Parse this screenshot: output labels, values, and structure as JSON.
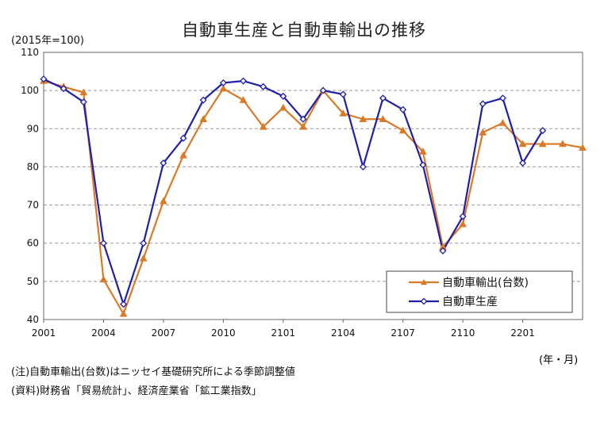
{
  "chart_data": {
    "type": "line",
    "title": "自動車生産と自動車輸出の推移",
    "unit_label": "(2015年=100)",
    "xaxis_unit": "(年・月)",
    "x_ticks": [
      "2001",
      "2004",
      "2007",
      "2010",
      "2101",
      "2104",
      "2107",
      "2110",
      "2201"
    ],
    "x": [
      "2001",
      "2002",
      "2003",
      "2004",
      "2005",
      "2006",
      "2007",
      "2008",
      "2009",
      "2010",
      "2011",
      "2012",
      "2101",
      "2102",
      "2103",
      "2104",
      "2105",
      "2106",
      "2107",
      "2108",
      "2109",
      "2110",
      "2111",
      "2112",
      "2201",
      "2202",
      "2203",
      "2204"
    ],
    "y_ticks": [
      40,
      50,
      60,
      70,
      80,
      90,
      100,
      110
    ],
    "ylim": [
      40,
      110
    ],
    "grid": true,
    "legend_position": "bottom-right",
    "series": [
      {
        "name": "自動車輸出(台数)",
        "color": "#d97a27",
        "marker": "triangle",
        "values": [
          102.5,
          101,
          99.5,
          50.5,
          41.5,
          56,
          71,
          83,
          92.5,
          100.5,
          97.5,
          90.5,
          95.5,
          90.5,
          100,
          94,
          92.5,
          92.5,
          89.5,
          84,
          59,
          65,
          89,
          91.5,
          86,
          86,
          86,
          85
        ]
      },
      {
        "name": "自動車生産",
        "color": "#1f1fa8",
        "marker": "diamond",
        "values": [
          103,
          100.5,
          97,
          60,
          44,
          60,
          81,
          87.5,
          97.5,
          102,
          102.5,
          101,
          98.5,
          92.5,
          100,
          99,
          80,
          98,
          95,
          80.5,
          58,
          67,
          96.5,
          98,
          81,
          89.5,
          null,
          null
        ]
      }
    ]
  },
  "notes": [
    "(注)自動車輸出(台数)はニッセイ基礎研究所による季節調整値",
    "(資料)財務省「貿易統計」、経済産業省「鉱工業指数」"
  ]
}
